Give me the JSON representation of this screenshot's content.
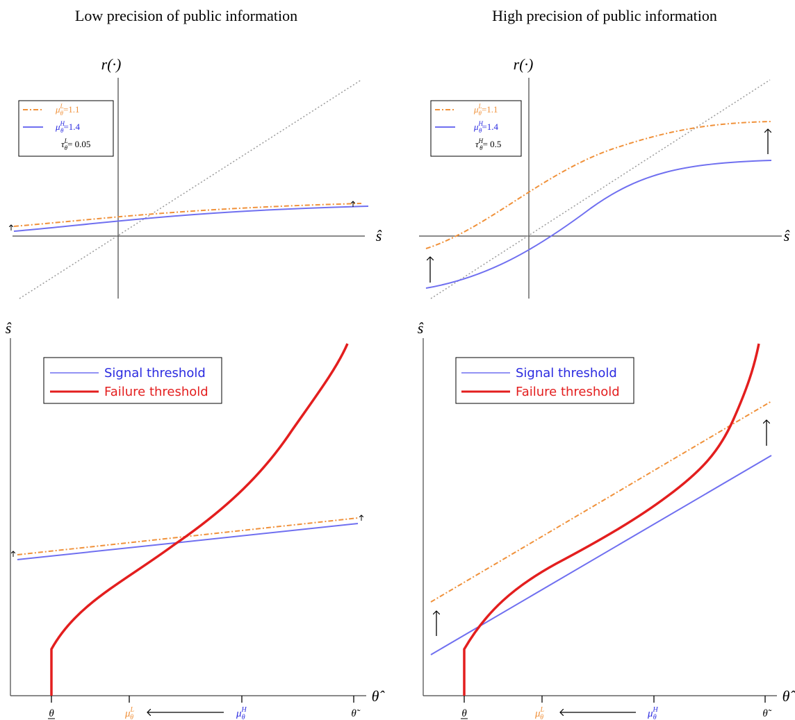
{
  "colors": {
    "orange": "#F0913A",
    "blue": "#6F6FF0",
    "red": "#E31E1E",
    "axis": "#444444",
    "diag": "#999999",
    "blue_text": "#2A2AE0",
    "red_text": "#E31E1E"
  },
  "panels": {
    "left": {
      "title": "Low precision of public information",
      "top": {
        "y_label": "r(·)",
        "x_label": "ŝ",
        "legend": {
          "orange": {
            "sym": "μ",
            "sup": "L",
            "sub": "θ",
            "val": "=1.1"
          },
          "blue": {
            "sym": "μ",
            "sup": "H",
            "sub": "θ",
            "val": "=1.4"
          },
          "tau": {
            "sym": "τ",
            "sup": "L",
            "sub": "θ",
            "val": "= 0.05"
          }
        }
      },
      "bottom": {
        "y_label": "ŝ",
        "x_label": "θ̂",
        "legend": {
          "signal": "Signal threshold",
          "failure": "Failure threshold"
        },
        "ticks": {
          "theta_low": "θ",
          "mu_L": {
            "sym": "μ",
            "sup": "L",
            "sub": "θ"
          },
          "mu_H": {
            "sym": "μ",
            "sup": "H",
            "sub": "θ"
          },
          "theta_tilde": "θ̃"
        }
      }
    },
    "right": {
      "title": "High precision of public information",
      "top": {
        "y_label": "r(·)",
        "x_label": "ŝ",
        "legend": {
          "orange": {
            "sym": "μ",
            "sup": "L",
            "sub": "θ",
            "val": "=1.1"
          },
          "blue": {
            "sym": "μ",
            "sup": "H",
            "sub": "θ",
            "val": "=1.4"
          },
          "tau": {
            "sym": "τ",
            "sup": "H",
            "sub": "θ",
            "val": "= 0.5"
          }
        }
      },
      "bottom": {
        "y_label": "ŝ",
        "x_label": "θ̂",
        "legend": {
          "signal": "Signal threshold",
          "failure": "Failure threshold"
        },
        "ticks": {
          "theta_low": "θ",
          "mu_L": {
            "sym": "μ",
            "sup": "L",
            "sub": "θ"
          },
          "mu_H": {
            "sym": "μ",
            "sup": "H",
            "sub": "θ"
          },
          "theta_tilde": "θ̃"
        }
      }
    }
  },
  "chart_data": [
    {
      "type": "line",
      "title": "Low precision of public information",
      "ylabel": "r(·)",
      "xlabel": "ŝ",
      "series": [
        {
          "name": "μθL=1.1",
          "color": "#F0913A",
          "style": "dashdot"
        },
        {
          "name": "μθH=1.4",
          "color": "#6F6FF0",
          "style": "solid"
        }
      ],
      "annotations": [
        "τθL = 0.05",
        "45-degree dotted line",
        "upward arrows"
      ]
    },
    {
      "type": "line",
      "title": "High precision of public information",
      "ylabel": "r(·)",
      "xlabel": "ŝ",
      "series": [
        {
          "name": "μθL=1.1",
          "color": "#F0913A",
          "style": "dashdot"
        },
        {
          "name": "μθH=1.4",
          "color": "#6F6FF0",
          "style": "solid"
        }
      ],
      "annotations": [
        "τθH = 0.5",
        "45-degree dotted line",
        "upward arrows"
      ]
    },
    {
      "type": "line",
      "ylabel": "ŝ",
      "xlabel": "θ̂",
      "categories": [
        "θ",
        "μθL",
        "μθH",
        "θ̃"
      ],
      "series": [
        {
          "name": "Signal threshold",
          "color": "#6F6FF0"
        },
        {
          "name": "Failure threshold",
          "color": "#E31E1E"
        },
        {
          "name": "",
          "color": "#F0913A",
          "style": "dashdot"
        }
      ]
    },
    {
      "type": "line",
      "ylabel": "ŝ",
      "xlabel": "θ̂",
      "categories": [
        "θ",
        "μθL",
        "μθH",
        "θ̃"
      ],
      "series": [
        {
          "name": "Signal threshold",
          "color": "#6F6FF0"
        },
        {
          "name": "Failure threshold",
          "color": "#E31E1E"
        },
        {
          "name": "",
          "color": "#F0913A",
          "style": "dashdot"
        }
      ]
    }
  ]
}
